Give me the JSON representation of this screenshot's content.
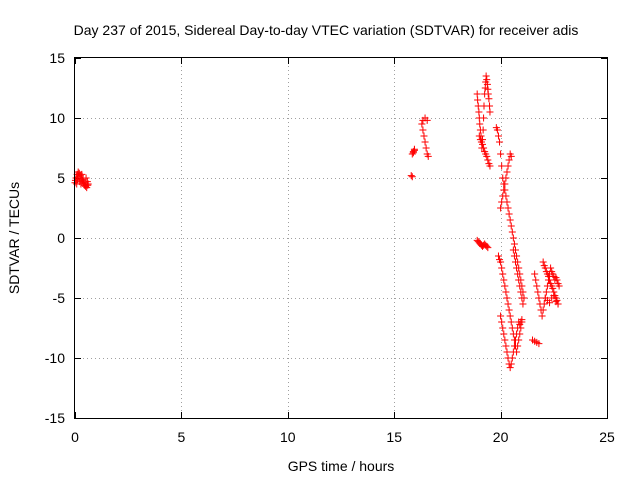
{
  "chart_data": {
    "type": "scatter",
    "title": "Day 237 of 2015, Sidereal Day-to-day VTEC variation (SDTVAR) for receiver adis",
    "xlabel": "GPS time / hours",
    "ylabel": "SDTVAR / TECUs",
    "xlim": [
      0,
      25
    ],
    "ylim": [
      -15,
      15
    ],
    "xticks": [
      0,
      5,
      10,
      15,
      20,
      25
    ],
    "yticks": [
      -15,
      -10,
      -5,
      0,
      5,
      10,
      15
    ],
    "xtick_labels": [
      "0",
      "5",
      "10",
      "15",
      "20",
      "25"
    ],
    "ytick_labels": [
      "-15",
      "-10",
      "-5",
      "0",
      "5",
      "10",
      "15"
    ],
    "grid": true,
    "marker": "+",
    "color": "#ff0000",
    "series": [
      {
        "name": "SDTVAR",
        "x": [
          0.0,
          0.05,
          0.1,
          0.15,
          0.2,
          0.25,
          0.3,
          0.35,
          0.4,
          0.45,
          0.5,
          0.55,
          0.6,
          0.02,
          0.08,
          0.12,
          0.18,
          0.22,
          0.28,
          0.32,
          0.38,
          0.42,
          0.48,
          0.52,
          0.58,
          0.62,
          15.8,
          15.85,
          15.9,
          15.95,
          15.85,
          15.9,
          15.95,
          16.3,
          16.35,
          16.4,
          16.45,
          16.5,
          16.55,
          16.6,
          16.35,
          16.45,
          16.55,
          18.9,
          18.92,
          18.95,
          18.98,
          19.0,
          19.02,
          19.05,
          19.08,
          19.1,
          19.12,
          19.15,
          19.18,
          19.2,
          19.22,
          19.25,
          19.28,
          19.3,
          19.32,
          19.35,
          19.38,
          19.4,
          19.42,
          19.45,
          19.48,
          19.5,
          19.0,
          19.05,
          19.1,
          19.15,
          19.2,
          19.25,
          19.3,
          19.35,
          19.4,
          19.45,
          19.5,
          18.9,
          18.95,
          19.0,
          19.05,
          19.1,
          19.15,
          19.2,
          19.25,
          19.3,
          19.35,
          19.4,
          19.8,
          19.85,
          19.9,
          19.95,
          20.0,
          20.05,
          20.1,
          20.15,
          20.2,
          20.25,
          20.3,
          20.35,
          20.4,
          20.45,
          20.5,
          20.55,
          20.6,
          20.65,
          20.7,
          20.75,
          20.8,
          20.85,
          20.9,
          20.95,
          21.0,
          21.05,
          21.1,
          19.9,
          19.95,
          20.0,
          20.05,
          20.1,
          20.15,
          20.2,
          20.25,
          20.3,
          20.35,
          20.4,
          20.45,
          20.5,
          20.55,
          20.6,
          20.65,
          20.7,
          20.75,
          20.8,
          20.85,
          20.9,
          20.95,
          21.0,
          20.0,
          20.05,
          20.1,
          20.15,
          20.2,
          20.25,
          20.3,
          20.35,
          20.4,
          20.45,
          20.5,
          20.55,
          20.6,
          20.65,
          20.7,
          20.75,
          20.8,
          20.85,
          20.9,
          20.95,
          21.0,
          20.6,
          20.65,
          20.7,
          20.75,
          20.8,
          20.85,
          20.9,
          20.95,
          21.0,
          21.05,
          20.0,
          20.05,
          20.1,
          20.15,
          20.2,
          20.25,
          20.3,
          20.35,
          20.4,
          20.45,
          20.5,
          21.5,
          21.6,
          21.7,
          21.8,
          21.6,
          21.65,
          21.7,
          21.75,
          21.8,
          21.85,
          21.9,
          21.95,
          22.0,
          22.05,
          22.1,
          22.15,
          22.2,
          22.25,
          22.3,
          22.35,
          22.4,
          22.45,
          22.5,
          22.55,
          22.6,
          22.65,
          22.7,
          22.75,
          22.0,
          22.05,
          22.1,
          22.15,
          22.2,
          22.25,
          22.3,
          22.35,
          22.4,
          22.45,
          22.5,
          22.55,
          22.6,
          22.65,
          22.7,
          22.1,
          22.2,
          22.3,
          22.4,
          22.5,
          22.6,
          22.7
        ],
        "y": [
          4.6,
          5.0,
          5.3,
          5.5,
          5.4,
          5.2,
          5.0,
          4.8,
          4.6,
          4.4,
          4.3,
          4.2,
          4.4,
          4.8,
          4.5,
          4.9,
          5.1,
          4.7,
          4.5,
          5.3,
          4.9,
          4.6,
          4.4,
          5.0,
          4.7,
          4.5,
          5.2,
          7.0,
          7.2,
          7.4,
          5.1,
          7.1,
          7.3,
          9.5,
          9.0,
          8.5,
          8.0,
          7.5,
          7.0,
          6.8,
          9.8,
          10.0,
          9.8,
          12.0,
          11.5,
          11.0,
          10.5,
          10.0,
          9.5,
          9.0,
          8.5,
          8.0,
          7.5,
          8.2,
          9.0,
          10.0,
          11.0,
          12.0,
          12.5,
          13.0,
          13.5,
          13.2,
          12.8,
          12.4,
          12.0,
          11.6,
          11.0,
          10.5,
          8.5,
          8.2,
          8.0,
          7.8,
          7.5,
          7.2,
          7.0,
          6.8,
          6.5,
          6.2,
          6.0,
          -0.2,
          -0.3,
          -0.4,
          -0.5,
          -0.6,
          -0.7,
          -0.6,
          -0.5,
          -0.6,
          -0.7,
          -0.8,
          9.2,
          9.0,
          8.5,
          8.0,
          7.0,
          6.0,
          5.0,
          4.5,
          4.0,
          3.5,
          3.0,
          2.5,
          2.0,
          1.5,
          1.0,
          0.5,
          0.0,
          -0.5,
          -1.0,
          -1.5,
          -2.0,
          -2.5,
          -3.0,
          -3.5,
          -4.0,
          -4.5,
          -5.0,
          -1.5,
          -1.8,
          -2.0,
          -2.5,
          -3.0,
          -3.5,
          -4.0,
          -4.5,
          -5.0,
          -5.5,
          -6.0,
          -6.5,
          -7.0,
          -7.5,
          -8.0,
          -8.5,
          -9.0,
          -9.5,
          -9.0,
          -8.5,
          -8.0,
          -7.5,
          -7.0,
          -6.5,
          -7.0,
          -7.5,
          -8.0,
          -8.5,
          -9.0,
          -9.5,
          -10.0,
          -10.5,
          -10.8,
          -10.5,
          -10.0,
          -9.5,
          -9.0,
          -8.5,
          -8.0,
          -7.5,
          -7.0,
          -7.2,
          -7.0,
          -6.8,
          -1.0,
          -1.5,
          -2.0,
          -2.5,
          -3.0,
          -3.5,
          -4.0,
          -4.5,
          -5.0,
          -5.5,
          2.5,
          3.0,
          3.5,
          4.0,
          4.5,
          5.0,
          5.5,
          6.0,
          6.5,
          7.0,
          6.8,
          -8.5,
          -8.6,
          -8.7,
          -8.8,
          -3.0,
          -3.5,
          -4.0,
          -4.5,
          -5.0,
          -5.5,
          -6.0,
          -6.5,
          -6.0,
          -5.5,
          -5.0,
          -4.5,
          -4.0,
          -3.5,
          -3.0,
          -2.5,
          -2.8,
          -3.0,
          -3.2,
          -3.5,
          -3.3,
          -3.5,
          -3.8,
          -4.0,
          -2.0,
          -2.3,
          -2.5,
          -2.8,
          -3.0,
          -3.2,
          -3.5,
          -3.8,
          -4.0,
          -4.2,
          -4.5,
          -4.8,
          -5.0,
          -5.2,
          -5.5,
          -5.0,
          -5.2,
          -5.4,
          -5.0,
          -4.8,
          -5.3,
          -5.5
        ]
      }
    ]
  }
}
